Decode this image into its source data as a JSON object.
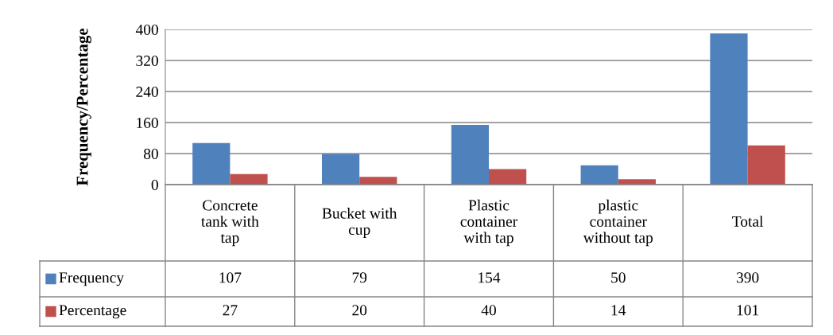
{
  "chart_data": {
    "type": "bar",
    "ylabel": "Frequency/Percentage",
    "categories": [
      "Concrete tank with tap",
      "Bucket with cup",
      "Plastic container with tap",
      "plastic container without tap",
      "Total"
    ],
    "series": [
      {
        "name": "Frequency",
        "color": "#4f81bd",
        "values": [
          107,
          79,
          154,
          50,
          390
        ]
      },
      {
        "name": "Percentage",
        "color": "#c0504d",
        "values": [
          27,
          20,
          40,
          14,
          101
        ]
      }
    ],
    "ylim": [
      0,
      400
    ],
    "yticks": [
      0,
      80,
      160,
      240,
      320,
      400
    ],
    "grid": "y",
    "legend": "left",
    "data_labels": true
  }
}
